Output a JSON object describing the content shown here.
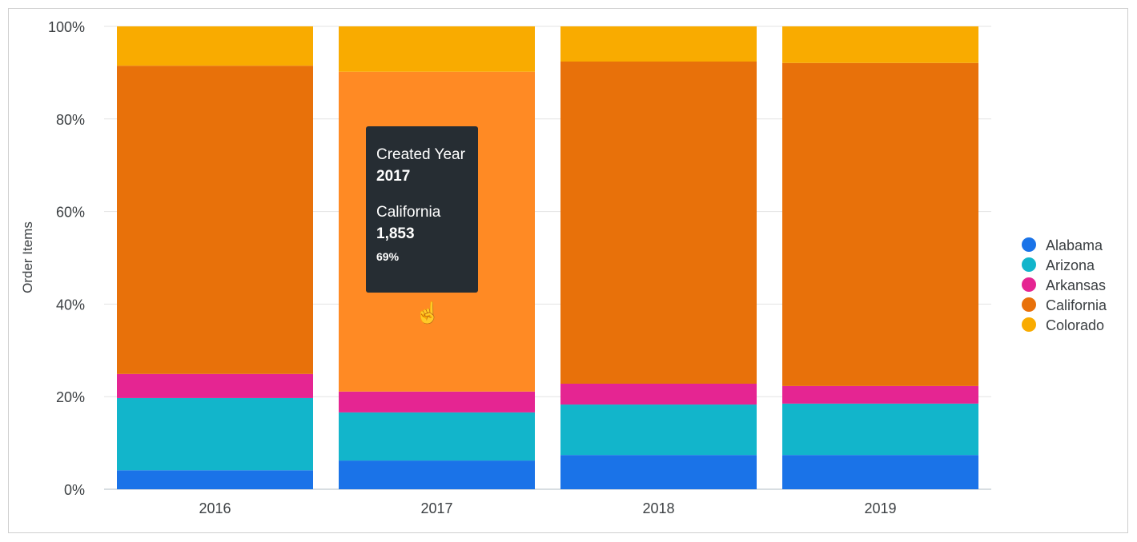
{
  "chart_data": {
    "type": "bar",
    "stacked": "percent",
    "ylabel": "Order Items",
    "ylim": [
      0,
      100
    ],
    "yticks": [
      "0%",
      "20%",
      "40%",
      "60%",
      "80%",
      "100%"
    ],
    "grid": true,
    "legend_position": "right",
    "categories": [
      "2016",
      "2017",
      "2018",
      "2019"
    ],
    "series": [
      {
        "name": "Alabama",
        "color": "#1a73e8",
        "values": [
          4.1,
          6.2,
          7.4,
          7.4
        ]
      },
      {
        "name": "Arizona",
        "color": "#12b5cb",
        "values": [
          15.6,
          10.4,
          10.9,
          11.1
        ]
      },
      {
        "name": "Arkansas",
        "color": "#e52592",
        "values": [
          5.2,
          4.5,
          4.5,
          3.8
        ]
      },
      {
        "name": "California",
        "color": "#e8710a",
        "values": [
          66.6,
          69.1,
          69.6,
          69.8
        ]
      },
      {
        "name": "Colorado",
        "color": "#f9ab00",
        "values": [
          8.5,
          9.8,
          7.6,
          7.9
        ]
      }
    ],
    "hover_color": "#ff8a24",
    "tooltip": {
      "dimension_label": "Created Year",
      "dimension_value": "2017",
      "series_label": "California",
      "value": "1,853",
      "percent": "69%"
    }
  }
}
